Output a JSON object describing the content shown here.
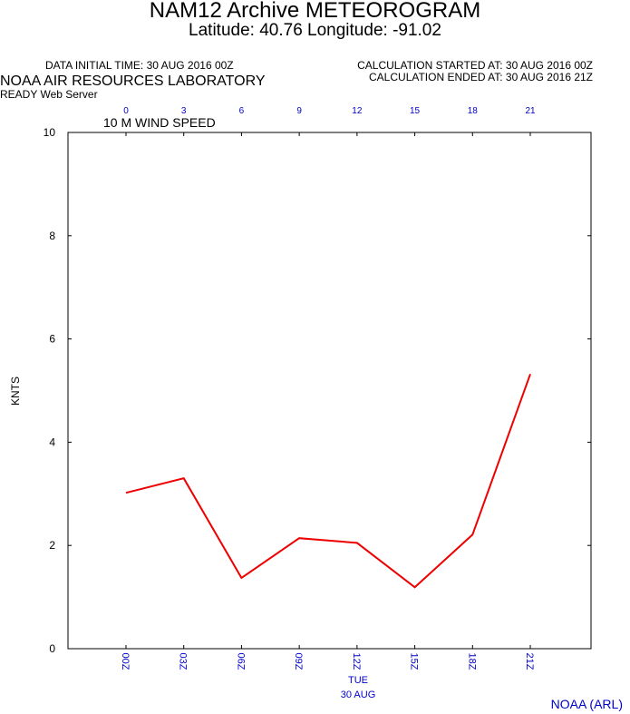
{
  "header": {
    "title": "NAM12 Archive METEOROGRAM",
    "subtitle": "Latitude: 40.76 Longitude: -91.02",
    "data_initial_time": "DATA INITIAL TIME: 30 AUG 2016 00Z",
    "calc_started": "CALCULATION STARTED AT: 30 AUG 2016 00Z",
    "calc_ended": "CALCULATION ENDED AT: 30 AUG 2016 21Z",
    "organization": "NOAA AIR RESOURCES LABORATORY",
    "server": "READY Web Server"
  },
  "footer": {
    "credit": "NOAA (ARL)"
  },
  "colors": {
    "series": "#ee0000",
    "axis_labels": "#0000cc",
    "text": "#000000"
  },
  "chart_data": {
    "type": "line",
    "panel_label": "10 M  WIND SPEED",
    "ylabel": "KNTS",
    "ylim": [
      0,
      10
    ],
    "yticks": [
      0,
      2,
      4,
      6,
      8,
      10
    ],
    "x": [
      0,
      3,
      6,
      9,
      12,
      15,
      18,
      21
    ],
    "x_top_labels": [
      "0",
      "3",
      "6",
      "9",
      "12",
      "15",
      "18",
      "21"
    ],
    "x_bottom_labels": [
      "00Z",
      "03Z",
      "06Z",
      "09Z",
      "12Z",
      "15Z",
      "18Z",
      "21Z"
    ],
    "date_label_line1": "TUE",
    "date_label_line2": "30 AUG",
    "series": [
      {
        "values": [
          3.02,
          3.3,
          1.37,
          2.14,
          2.05,
          1.19,
          2.21,
          5.32
        ]
      }
    ],
    "grid": false
  }
}
